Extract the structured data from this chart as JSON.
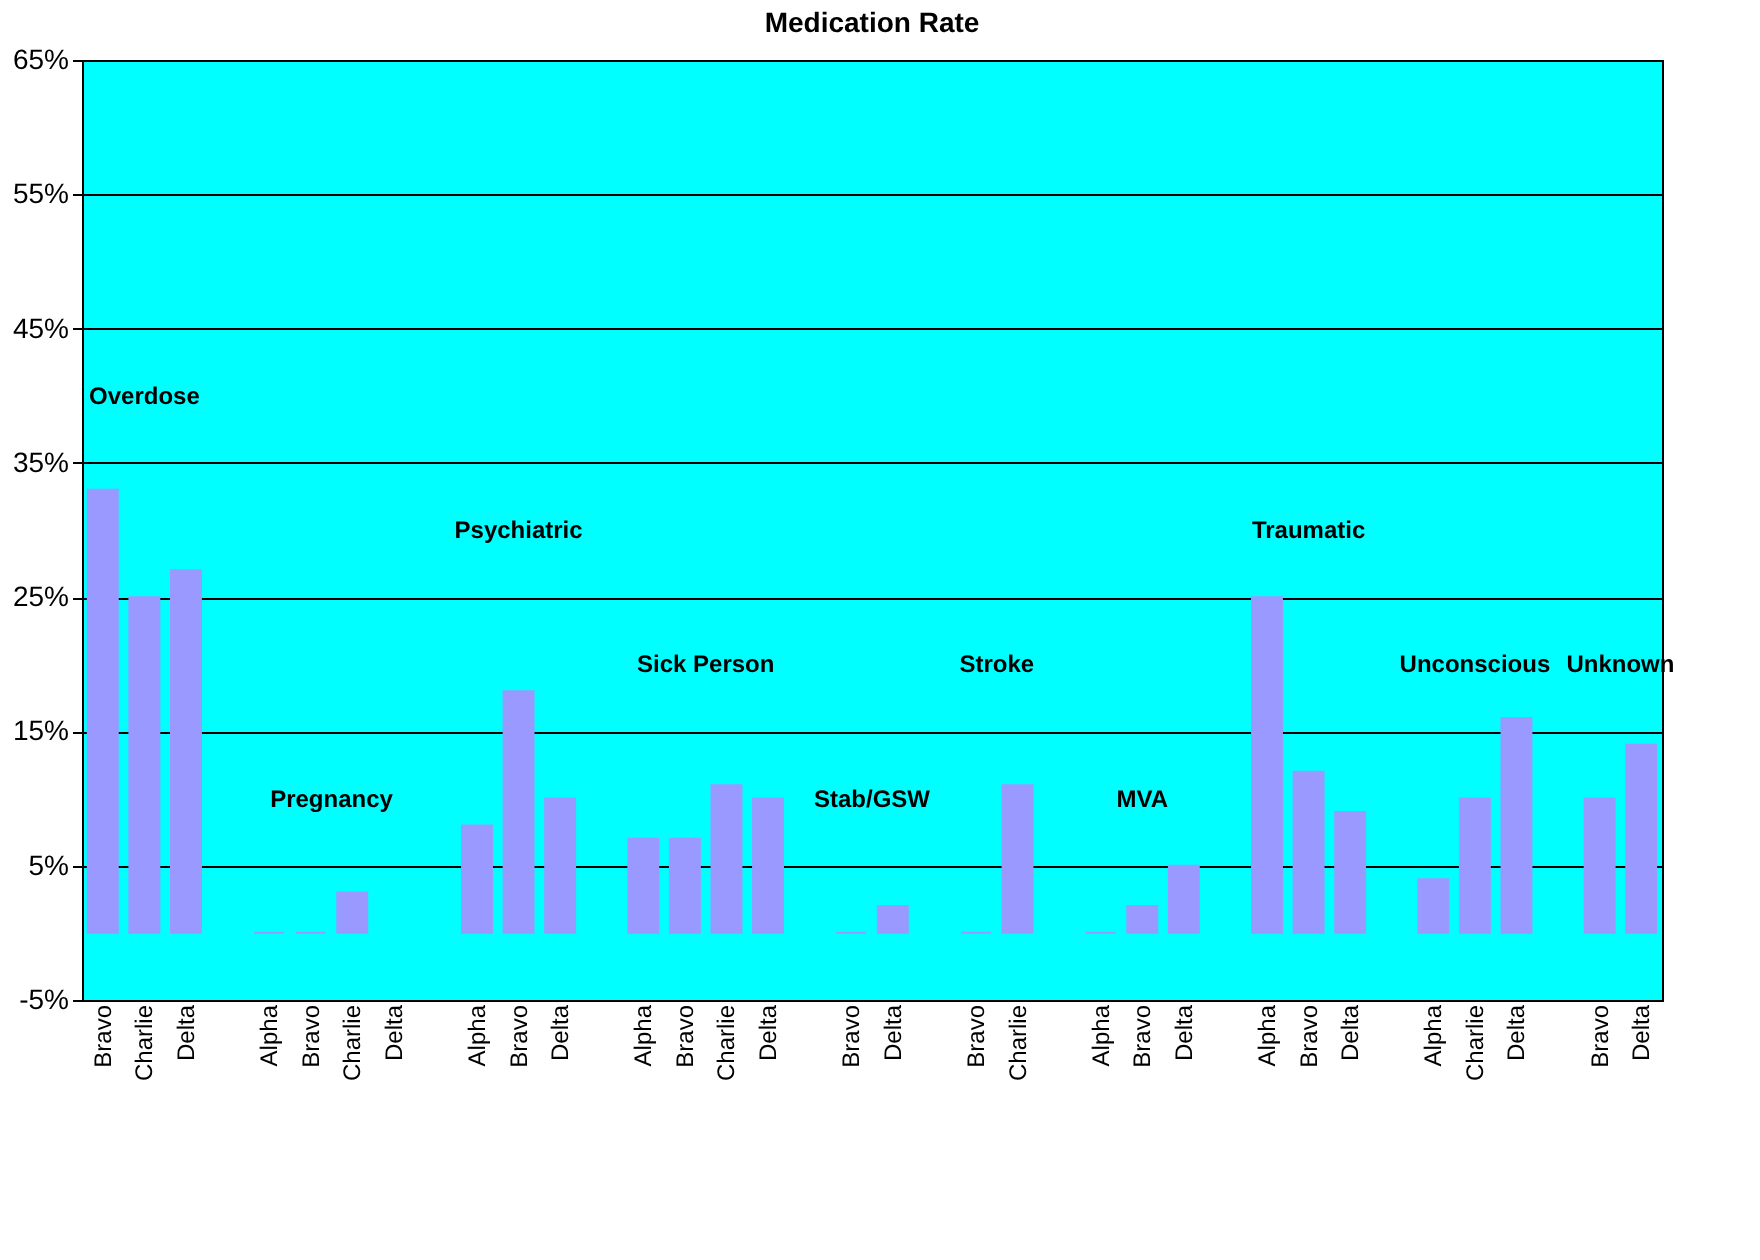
{
  "chart_data": {
    "type": "bar",
    "title": "Medication Rate",
    "categories": [
      "Bravo",
      "Charlie",
      "Delta",
      null,
      "Alpha",
      "Bravo",
      "Charlie",
      "Delta",
      null,
      "Alpha",
      "Bravo",
      "Delta",
      null,
      "Alpha",
      "Bravo",
      "Charlie",
      "Delta",
      null,
      "Bravo",
      "Delta",
      null,
      "Bravo",
      "Charlie",
      null,
      "Alpha",
      "Bravo",
      "Delta",
      null,
      "Alpha",
      "Bravo",
      "Delta",
      null,
      "Alpha",
      "Charlie",
      "Delta",
      null,
      "Bravo",
      "Delta"
    ],
    "values": [
      33,
      25,
      27,
      null,
      0,
      0,
      3,
      null,
      null,
      8,
      18,
      10,
      null,
      7,
      7,
      11,
      10,
      null,
      0,
      2,
      null,
      0,
      11,
      null,
      0,
      2,
      5,
      null,
      25,
      12,
      9,
      null,
      4,
      10,
      16,
      null,
      10,
      14
    ],
    "color": "#9999ff",
    "annotations": [
      "Overdose",
      "Pregnancy",
      "Psychiatric",
      "Sick Person",
      "Stab/GSW",
      "Stroke",
      "MVA",
      "Traumatic",
      "Unconscious",
      "Unknown"
    ],
    "ylim": [
      -5,
      65
    ],
    "yticks": [
      {
        "value": -5,
        "label": "-5%"
      },
      {
        "value": 5,
        "label": "5%"
      },
      {
        "value": 15,
        "label": "15%"
      },
      {
        "value": 25,
        "label": "25%"
      },
      {
        "value": 35,
        "label": "35%"
      },
      {
        "value": 45,
        "label": "45%"
      },
      {
        "value": 55,
        "label": "55%"
      },
      {
        "value": 65,
        "label": "65%"
      }
    ],
    "grid": "y"
  }
}
